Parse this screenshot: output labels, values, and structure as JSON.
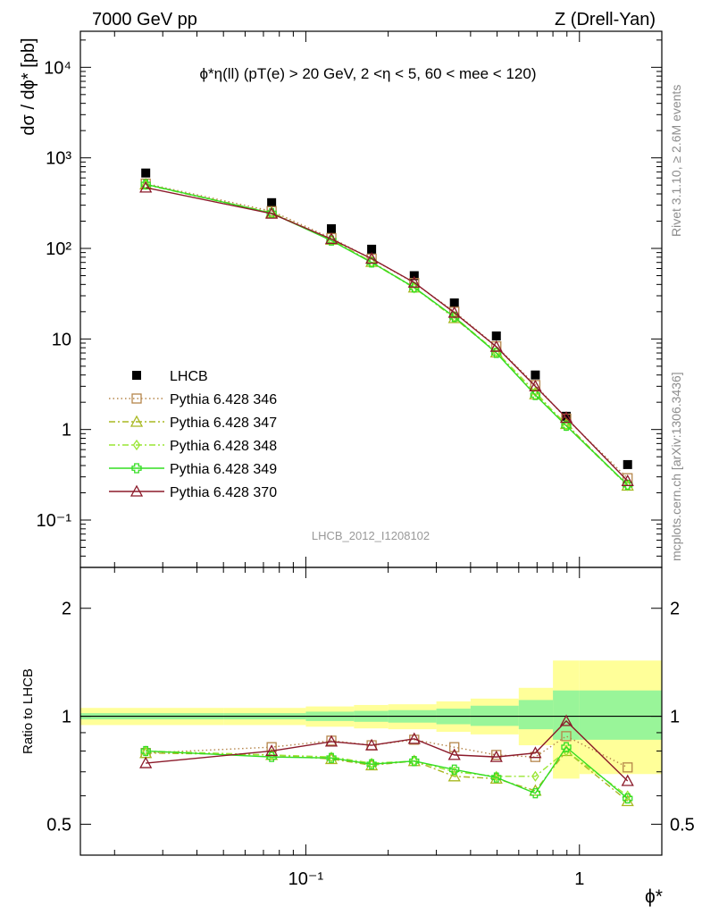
{
  "header": {
    "left": "7000 GeV pp",
    "right": "Z (Drell-Yan)"
  },
  "side_labels": {
    "rivet": "Rivet 3.1.10, ≥ 2.6M events",
    "mcplots": "mcplots.cern.ch [arXiv:1306.3436]"
  },
  "main_panel": {
    "ylabel": "dσ / dϕ* [pb]",
    "annotation": "ϕ*η(ll) (pT(e) > 20 GeV, 2 <η < 5, 60 < mee < 120)",
    "analysis_id": "LHCB_2012_I1208102",
    "y_ticks": [
      "10⁻¹",
      "1",
      "10",
      "10²",
      "10³",
      "10⁴"
    ]
  },
  "ratio_panel": {
    "ylabel": "Ratio to LHCB",
    "y_ticks": [
      "0.5",
      "1",
      "2"
    ]
  },
  "x_axis": {
    "label": "ϕ*",
    "ticks": [
      "10⁻¹",
      "1"
    ]
  },
  "legend": [
    {
      "name": "LHCB",
      "color": "#000000",
      "marker": "filled-square",
      "line": "none"
    },
    {
      "name": "Pythia 6.428 346",
      "color": "#b5854a",
      "marker": "open-square",
      "line": "dotted"
    },
    {
      "name": "Pythia 6.428 347",
      "color": "#a8b820",
      "marker": "open-triangle",
      "line": "dash-dot"
    },
    {
      "name": "Pythia 6.428 348",
      "color": "#99e633",
      "marker": "open-diamond",
      "line": "dash-dot"
    },
    {
      "name": "Pythia 6.428 349",
      "color": "#33dd22",
      "marker": "open-cross",
      "line": "solid"
    },
    {
      "name": "Pythia 6.428 370",
      "color": "#8b1a2a",
      "marker": "open-triangle",
      "line": "solid"
    }
  ],
  "chart_data": [
    {
      "type": "scatter",
      "panel": "main",
      "xscale": "log",
      "yscale": "log",
      "xlim": [
        0.015,
        2.0
      ],
      "ylim": [
        0.03,
        25000
      ],
      "x": [
        0.026,
        0.075,
        0.124,
        0.174,
        0.249,
        0.349,
        0.497,
        0.69,
        0.895,
        1.5
      ],
      "series": [
        {
          "name": "LHCB",
          "values": [
            680,
            320,
            165,
            98,
            50,
            25,
            10.8,
            4.0,
            1.4,
            0.41
          ]
        },
        {
          "name": "Pythia 6.428 346",
          "values": [
            520,
            258,
            130,
            77,
            41.5,
            20,
            8.3,
            3.1,
            1.32,
            0.29
          ]
        },
        {
          "name": "Pythia 6.428 347",
          "values": [
            510,
            248,
            125,
            71,
            37,
            17,
            7.1,
            2.45,
            1.15,
            0.24
          ]
        },
        {
          "name": "Pythia 6.428 348",
          "values": [
            505,
            245,
            123,
            70,
            36.5,
            17.5,
            7.2,
            2.6,
            1.1,
            0.24
          ]
        },
        {
          "name": "Pythia 6.428 349",
          "values": [
            510,
            245,
            122,
            70,
            37,
            17.5,
            7.0,
            2.4,
            1.1,
            0.245
          ]
        },
        {
          "name": "Pythia 6.428 370",
          "values": [
            470,
            242,
            127,
            77,
            42,
            19.5,
            8.2,
            3.0,
            1.35,
            0.27
          ]
        }
      ]
    },
    {
      "type": "line",
      "panel": "ratio",
      "xscale": "log",
      "yscale": "log",
      "xlim": [
        0.015,
        2.0
      ],
      "ylim": [
        0.41,
        2.6
      ],
      "x": [
        0.026,
        0.075,
        0.124,
        0.174,
        0.249,
        0.349,
        0.497,
        0.69,
        0.895,
        1.5
      ],
      "reference_line": 1.0,
      "bands": {
        "edges": [
          0.015,
          0.05,
          0.1,
          0.15,
          0.2,
          0.3,
          0.4,
          0.6,
          0.8,
          1.0,
          2.0
        ],
        "inner_low": [
          0.98,
          0.98,
          0.97,
          0.965,
          0.96,
          0.95,
          0.94,
          0.92,
          0.86,
          0.86
        ],
        "inner_high": [
          1.02,
          1.02,
          1.03,
          1.035,
          1.04,
          1.05,
          1.07,
          1.11,
          1.18,
          1.18
        ],
        "outer_low": [
          0.945,
          0.945,
          0.935,
          0.925,
          0.92,
          0.905,
          0.89,
          0.83,
          0.67,
          0.69
        ],
        "outer_high": [
          1.055,
          1.055,
          1.065,
          1.075,
          1.08,
          1.1,
          1.12,
          1.2,
          1.43,
          1.43
        ]
      },
      "series": [
        {
          "name": "Pythia 6.428 346",
          "values": [
            0.79,
            0.82,
            0.855,
            0.83,
            0.86,
            0.82,
            0.78,
            0.77,
            0.88,
            0.72
          ]
        },
        {
          "name": "Pythia 6.428 347",
          "values": [
            0.79,
            0.78,
            0.76,
            0.73,
            0.75,
            0.68,
            0.67,
            0.62,
            0.8,
            0.58
          ]
        },
        {
          "name": "Pythia 6.428 348",
          "values": [
            0.8,
            0.78,
            0.77,
            0.74,
            0.75,
            0.7,
            0.68,
            0.68,
            0.8,
            0.6
          ]
        },
        {
          "name": "Pythia 6.428 349",
          "values": [
            0.8,
            0.77,
            0.765,
            0.735,
            0.75,
            0.71,
            0.675,
            0.61,
            0.82,
            0.59
          ]
        },
        {
          "name": "Pythia 6.428 370",
          "values": [
            0.74,
            0.8,
            0.85,
            0.83,
            0.865,
            0.78,
            0.77,
            0.79,
            0.97,
            0.66
          ]
        }
      ]
    }
  ]
}
